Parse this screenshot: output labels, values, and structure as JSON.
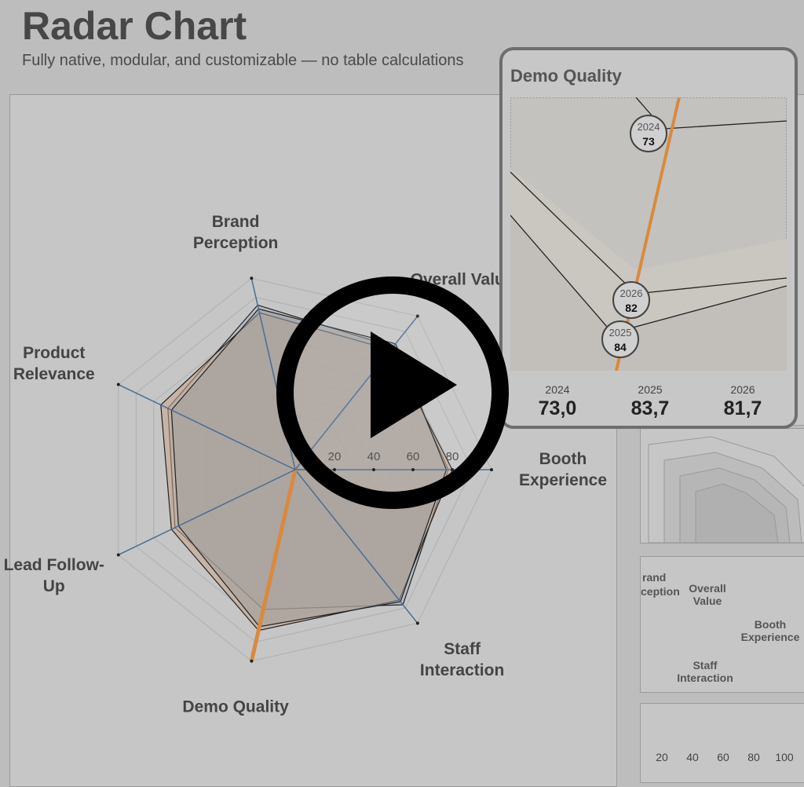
{
  "header": {
    "title": "Radar Chart",
    "subtitle": "Fully native, modular, and customizable — no table calculations"
  },
  "chart_data": {
    "type": "radar",
    "categories": [
      "Booth Experience",
      "Staff Interaction",
      "Demo Quality",
      "Lead Follow-Up",
      "Product Relevance",
      "Brand Perception",
      "Overall Value"
    ],
    "series": [
      {
        "name": "2024",
        "color": "#a7b4c2",
        "values": [
          78,
          88,
          73,
          68,
          72,
          86,
          80
        ]
      },
      {
        "name": "2025",
        "color": "#c9a68c",
        "values": [
          80,
          85,
          84,
          70,
          76,
          82,
          78
        ]
      },
      {
        "name": "2026",
        "color": "#9d9d9d",
        "values": [
          77,
          86,
          82,
          66,
          70,
          84,
          82
        ]
      }
    ],
    "highlight": "Demo Quality",
    "highlight_color": "#d98a3c",
    "ylim": [
      0,
      100
    ],
    "yticks": [
      20,
      40,
      60,
      80
    ],
    "grid": true
  },
  "tooltip": {
    "title": "Demo Quality",
    "points": [
      {
        "year": "2024",
        "value": 73
      },
      {
        "year": "2026",
        "value": 82
      },
      {
        "year": "2025",
        "value": 84
      }
    ],
    "summary": [
      {
        "year": "2024",
        "value": "73,0"
      },
      {
        "year": "2025",
        "value": "83,7"
      },
      {
        "year": "2026",
        "value": "81,7"
      }
    ]
  },
  "side_panel": {
    "labels": [
      "rand",
      "ception",
      "Overall Value",
      "Booth Experience",
      "Staff Interaction"
    ],
    "ticks": [
      20,
      40,
      60,
      80,
      100
    ]
  }
}
